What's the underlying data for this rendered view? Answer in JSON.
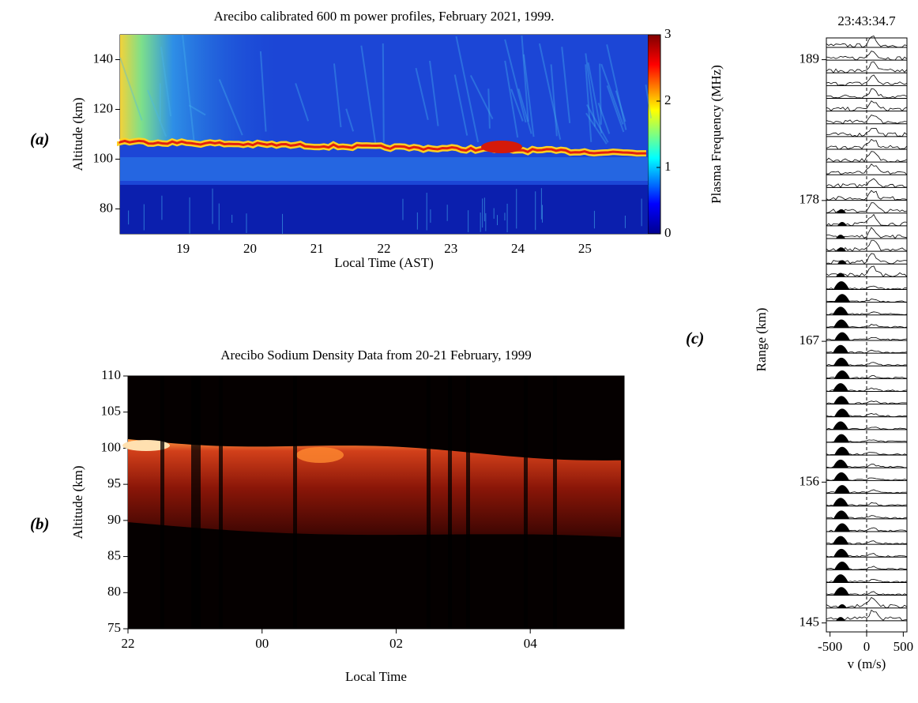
{
  "panel_labels": [
    "(a)",
    "(b)",
    "(c)"
  ],
  "chart_data": [
    {
      "type": "heatmap",
      "title": "Arecibo calibrated 600 m power profiles, February 2021, 1999.",
      "xlabel": "Local Time (AST)",
      "ylabel": "Altitude (km)",
      "xlim": [
        18.06,
        25.94
      ],
      "xticks": [
        19,
        20,
        21,
        22,
        23,
        24,
        25
      ],
      "ylim": [
        70,
        150
      ],
      "yticks": [
        80,
        100,
        120,
        140
      ],
      "colorbar": {
        "label": "Plasma Frequency (MHz)",
        "lim": [
          0,
          3
        ],
        "ticks": [
          0,
          1,
          2,
          3
        ]
      }
    },
    {
      "type": "heatmap",
      "title": "Arecibo Sodium Density Data from 20-21 February, 1999",
      "xlabel": "Local Time",
      "ylabel": "Altitude (km)",
      "xlim": [
        22,
        29.4
      ],
      "xticks": [
        22,
        {
          "value": 24,
          "label": "00"
        },
        {
          "value": 26,
          "label": "02"
        },
        {
          "value": 28,
          "label": "04"
        }
      ],
      "ylim": [
        75,
        110
      ],
      "yticks": [
        75,
        80,
        85,
        90,
        95,
        100,
        105,
        110
      ]
    },
    {
      "type": "profiles",
      "title": "23:43:34.7",
      "xlabel": "v (m/s)",
      "ylabel": "Range (km)",
      "xlim": [
        -550,
        550
      ],
      "xticks": [
        -500,
        0,
        500
      ],
      "ylim": [
        144.3,
        190.7
      ],
      "yticks": [
        145,
        156,
        167,
        178,
        189
      ]
    }
  ]
}
